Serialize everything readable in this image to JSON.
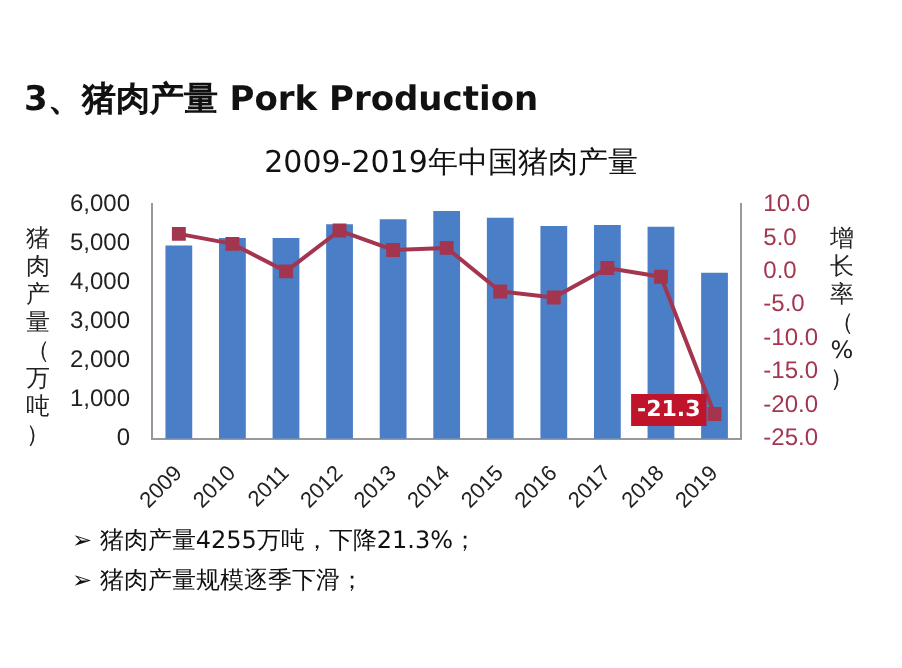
{
  "chart_data": {
    "type": "bar",
    "title": "3、猪肉产量 Pork Production",
    "subtitle": "2009-2019年中国猪肉产量",
    "ylabel": "猪肉产量（万吨）",
    "y2label": "增长率（%）",
    "categories": [
      "2009",
      "2010",
      "2011",
      "2012",
      "2013",
      "2014",
      "2015",
      "2016",
      "2017",
      "2018",
      "2019"
    ],
    "series": [
      {
        "type": "bar",
        "color": "#4a7fc8",
        "values": [
          4950,
          5140,
          5140,
          5490,
          5620,
          5830,
          5660,
          5450,
          5470,
          5430,
          4250
        ]
      },
      {
        "type": "line",
        "axis": "y2",
        "color": "#a3354f",
        "marker": "square",
        "values": [
          5.6,
          4.1,
          0,
          6.1,
          3.2,
          3.5,
          -3.0,
          -3.9,
          0.5,
          -0.8,
          -21.3
        ],
        "value_labels": [
          null,
          null,
          null,
          null,
          null,
          null,
          null,
          null,
          null,
          null,
          "-21.3"
        ]
      }
    ],
    "ylim": [
      0,
      6000
    ],
    "yticks": [
      0,
      {
        "value": 1000,
        "label": "1,000"
      },
      {
        "value": 2000,
        "label": "2,000"
      },
      {
        "value": 3000,
        "label": "3,000"
      },
      {
        "value": 4000,
        "label": "4,000"
      },
      {
        "value": 5000,
        "label": "5,000"
      },
      {
        "value": 6000,
        "label": "6,000"
      }
    ],
    "y2lim": [
      -25,
      10
    ],
    "y2ticks": [
      {
        "value": -25,
        "label": "-25.0"
      },
      {
        "value": -20,
        "label": "-20.0"
      },
      {
        "value": -15,
        "label": "-15.0"
      },
      {
        "value": -10,
        "label": "-10.0"
      },
      {
        "value": -5,
        "label": "-5.0"
      },
      {
        "value": 0,
        "label": "0.0"
      },
      {
        "value": 5,
        "label": "5.0"
      },
      {
        "value": 10,
        "label": "10.0"
      }
    ],
    "grid": false,
    "legend": false,
    "annotations": [
      "➢ 猪肉产量4255万吨，下降21.3%；",
      "➢ 猪肉产量规模逐季下滑；"
    ]
  }
}
